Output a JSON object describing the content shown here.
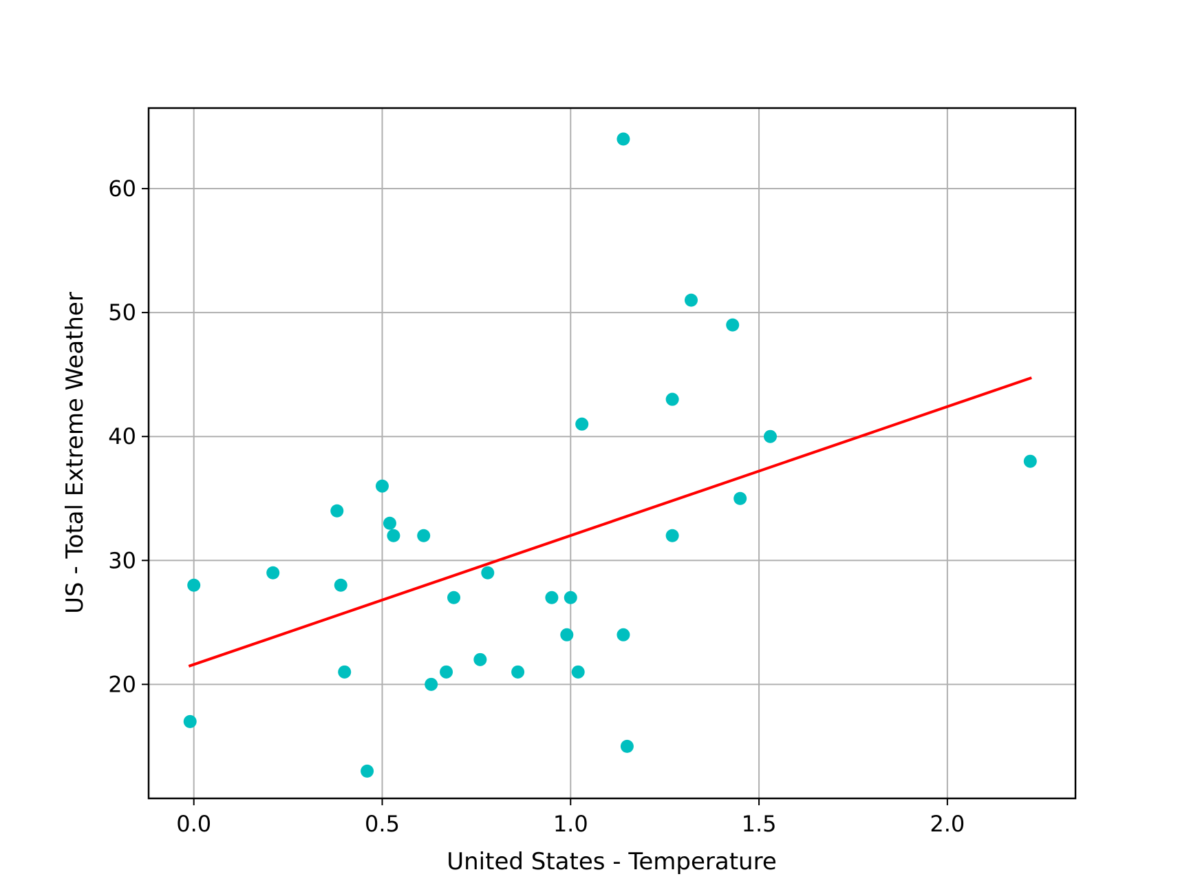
{
  "chart_data": {
    "type": "scatter",
    "title": "",
    "xlabel": "United States - Temperature",
    "ylabel": "US - Total Extreme Weather",
    "xlim": [
      -0.12,
      2.34
    ],
    "ylim": [
      10.8,
      66.5
    ],
    "x_ticks": [
      0.0,
      0.5,
      1.0,
      1.5,
      2.0
    ],
    "x_tick_labels": [
      "0.0",
      "0.5",
      "1.0",
      "1.5",
      "2.0"
    ],
    "y_ticks": [
      20,
      30,
      40,
      50,
      60
    ],
    "y_tick_labels": [
      "20",
      "30",
      "40",
      "50",
      "60"
    ],
    "grid": true,
    "colors": {
      "points": "#00bfbf",
      "trend_line": "#ff0000",
      "grid": "#b0b0b0"
    },
    "series": [
      {
        "kind": "points",
        "points": [
          [
            -0.01,
            17
          ],
          [
            0.0,
            28
          ],
          [
            0.21,
            29
          ],
          [
            0.38,
            34
          ],
          [
            0.39,
            28
          ],
          [
            0.4,
            21
          ],
          [
            0.46,
            13
          ],
          [
            0.5,
            36
          ],
          [
            0.52,
            33
          ],
          [
            0.53,
            32
          ],
          [
            0.61,
            32
          ],
          [
            0.63,
            20
          ],
          [
            0.67,
            21
          ],
          [
            0.69,
            27
          ],
          [
            0.76,
            22
          ],
          [
            0.78,
            29
          ],
          [
            0.86,
            21
          ],
          [
            0.95,
            27
          ],
          [
            0.99,
            24
          ],
          [
            1.0,
            27
          ],
          [
            1.02,
            21
          ],
          [
            1.03,
            41
          ],
          [
            1.14,
            64
          ],
          [
            1.14,
            24
          ],
          [
            1.15,
            15
          ],
          [
            1.27,
            43
          ],
          [
            1.27,
            32
          ],
          [
            1.32,
            51
          ],
          [
            1.43,
            49
          ],
          [
            1.45,
            35
          ],
          [
            1.53,
            40
          ],
          [
            2.22,
            38
          ]
        ]
      },
      {
        "kind": "trend_line",
        "points": [
          [
            -0.01,
            21.5
          ],
          [
            2.22,
            44.7
          ]
        ]
      }
    ]
  }
}
